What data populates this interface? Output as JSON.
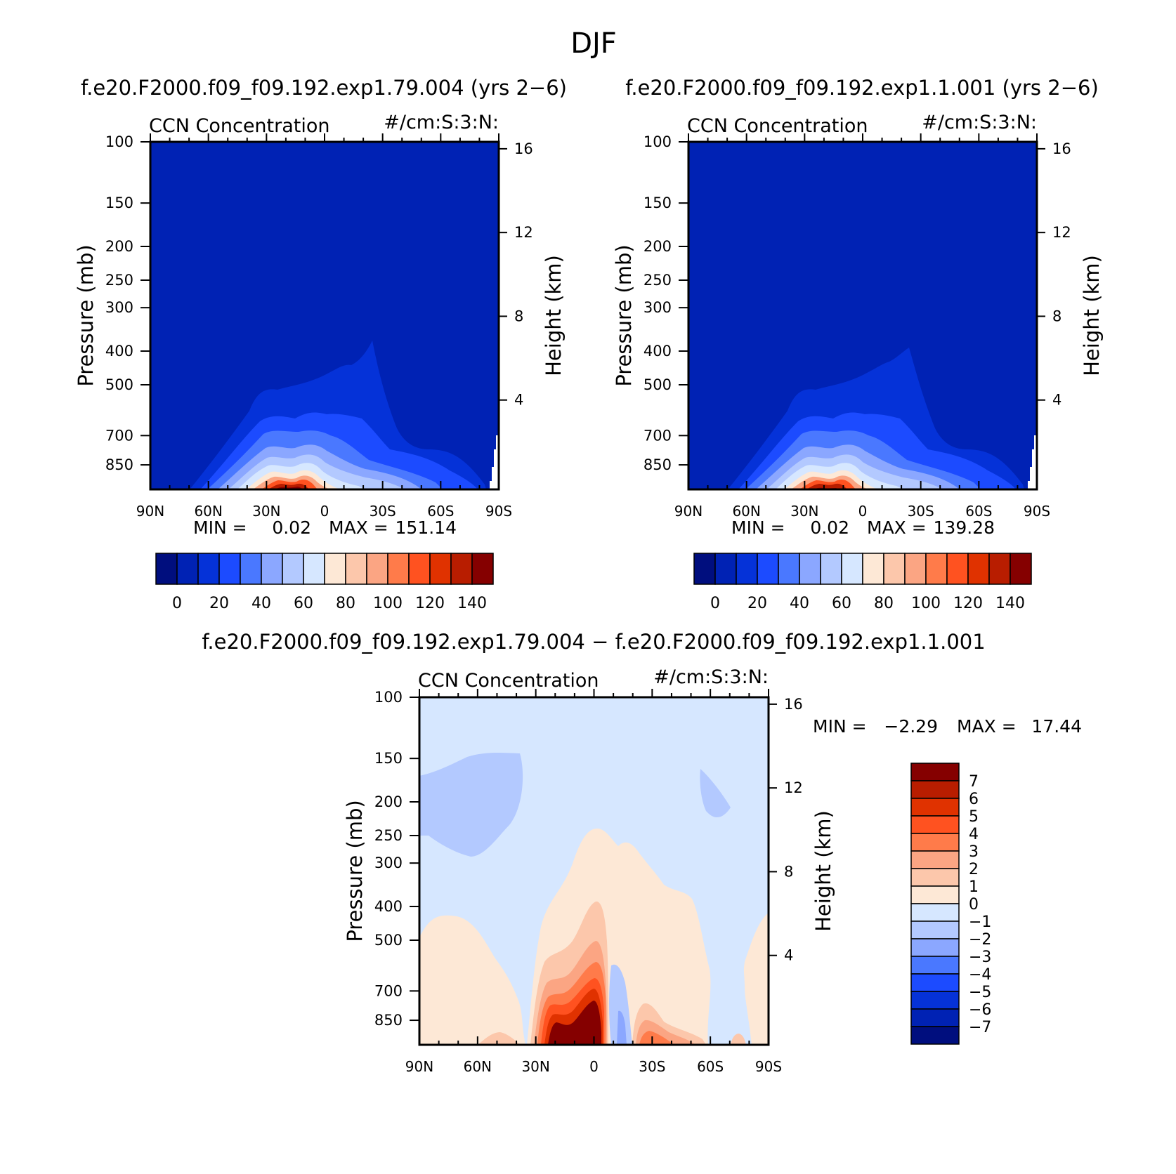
{
  "figure_title": "DJF",
  "colors": {
    "abs_scale": [
      "#000e7e",
      "#0022b4",
      "#0532d8",
      "#1c4bff",
      "#4a78ff",
      "#8ba7ff",
      "#b3c9ff",
      "#d6e7ff",
      "#fde8d6",
      "#fcc7ab",
      "#fba583",
      "#ff7b4a",
      "#ff5220",
      "#e03200",
      "#b81d00",
      "#850000"
    ],
    "diff_scale": [
      "#000e7e",
      "#0022b4",
      "#0532d8",
      "#1c4bff",
      "#4a78ff",
      "#8ba7ff",
      "#b3c9ff",
      "#d6e7ff",
      "#fde8d6",
      "#fcc7ab",
      "#fba583",
      "#ff7b4a",
      "#ff5220",
      "#e03200",
      "#b81d00",
      "#850000"
    ]
  },
  "chart_data": [
    {
      "type": "heatmap",
      "panel_title": "f.e20.F2000.f09_f09.192.exp1.79.004 (yrs 2−6)",
      "left_label": "CCN Concentration",
      "right_label": "#/cm:S:3:N:",
      "ylabel": "Pressure (mb)",
      "y2label": "Height (km)",
      "x_ticks": [
        "90N",
        "60N",
        "30N",
        "0",
        "30S",
        "60S",
        "90S"
      ],
      "y_ticks": [
        "100",
        "150",
        "200",
        "250",
        "300",
        "400",
        "500",
        "700",
        "850"
      ],
      "y2_ticks": [
        "16",
        "12",
        "8",
        "4"
      ],
      "min_label": "MIN =",
      "min_value": "0.02",
      "max_label": "MAX =",
      "max_value": "151.14",
      "colorbar_labels": [
        "0",
        "20",
        "40",
        "60",
        "80",
        "100",
        "120",
        "140"
      ],
      "xlim": [
        90,
        -90
      ],
      "ylim": [
        100,
        1000
      ],
      "y_scale": "log"
    },
    {
      "type": "heatmap",
      "panel_title": "f.e20.F2000.f09_f09.192.exp1.1.001 (yrs 2−6)",
      "left_label": "CCN Concentration",
      "right_label": "#/cm:S:3:N:",
      "ylabel": "Pressure (mb)",
      "y2label": "Height (km)",
      "x_ticks": [
        "90N",
        "60N",
        "30N",
        "0",
        "30S",
        "60S",
        "90S"
      ],
      "y_ticks": [
        "100",
        "150",
        "200",
        "250",
        "300",
        "400",
        "500",
        "700",
        "850"
      ],
      "y2_ticks": [
        "16",
        "12",
        "8",
        "4"
      ],
      "min_label": "MIN =",
      "min_value": "0.02",
      "max_label": "MAX =",
      "max_value": "139.28",
      "colorbar_labels": [
        "0",
        "20",
        "40",
        "60",
        "80",
        "100",
        "120",
        "140"
      ],
      "xlim": [
        90,
        -90
      ],
      "ylim": [
        100,
        1000
      ],
      "y_scale": "log"
    },
    {
      "type": "heatmap",
      "panel_title": "f.e20.F2000.f09_f09.192.exp1.79.004 − f.e20.F2000.f09_f09.192.exp1.1.001",
      "left_label": "CCN Concentration",
      "right_label": "#/cm:S:3:N:",
      "ylabel": "Pressure (mb)",
      "y2label": "Height (km)",
      "x_ticks": [
        "90N",
        "60N",
        "30N",
        "0",
        "30S",
        "60S",
        "90S"
      ],
      "y_ticks": [
        "100",
        "150",
        "200",
        "250",
        "300",
        "400",
        "500",
        "700",
        "850"
      ],
      "y2_ticks": [
        "16",
        "12",
        "8",
        "4"
      ],
      "min_label": "MIN =",
      "min_value": "−2.29",
      "max_label": "MAX =",
      "max_value": "17.44",
      "colorbar_labels": [
        "7",
        "6",
        "5",
        "4",
        "3",
        "2",
        "1",
        "0",
        "−1",
        "−2",
        "−3",
        "−4",
        "−5",
        "−6",
        "−7"
      ],
      "xlim": [
        90,
        -90
      ],
      "ylim": [
        100,
        1000
      ],
      "y_scale": "log"
    }
  ]
}
